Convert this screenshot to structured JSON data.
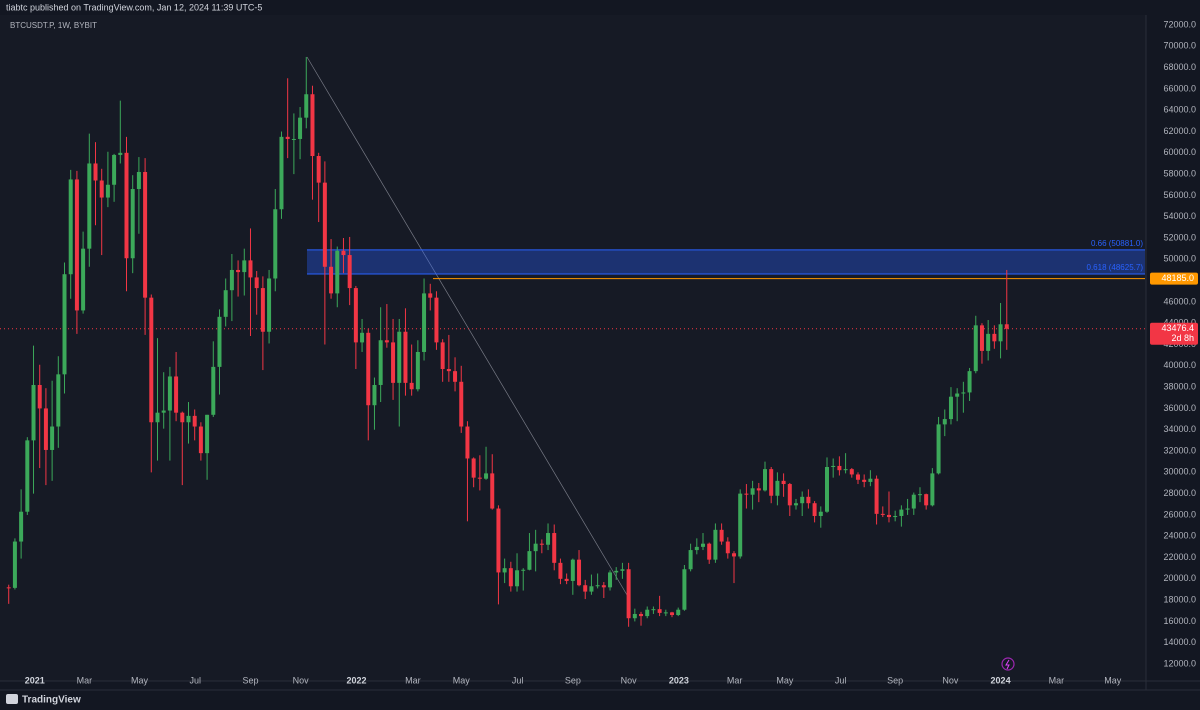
{
  "header": {
    "byline": "tiabtc published on TradingView.com, Jan 12, 2024 11:39 UTC-5",
    "symbol": "BTCUSDT.P, 1W, BYBIT",
    "brand": "TradingView"
  },
  "chart_data": {
    "type": "candlestick",
    "up_color": "#3ca95a",
    "down_color": "#f23645",
    "grid": false,
    "x": [
      0,
      1,
      2,
      3,
      4,
      5,
      6,
      7,
      8,
      9,
      10,
      11,
      12,
      13,
      14,
      15,
      16,
      17,
      18,
      19,
      20,
      21,
      22,
      23,
      24,
      25,
      26,
      27,
      28,
      29,
      30,
      31,
      32,
      33,
      34,
      35,
      36,
      37,
      38,
      39,
      40,
      41,
      42,
      43,
      44,
      45,
      46,
      47,
      48,
      49,
      50,
      51,
      52,
      53,
      54,
      55,
      56,
      57,
      58,
      59,
      60,
      61,
      62,
      63,
      64,
      65,
      66,
      67,
      68,
      69,
      70,
      71,
      72,
      73,
      74,
      75,
      76,
      77,
      78,
      79,
      80,
      81,
      82,
      83,
      84,
      85,
      86,
      87,
      88,
      89,
      90,
      91,
      92,
      93,
      94,
      95,
      96,
      97,
      98,
      99,
      100,
      101,
      102,
      103,
      104,
      105,
      106,
      107,
      108,
      109,
      110,
      111,
      112,
      113,
      114,
      115,
      116,
      117,
      118,
      119,
      120,
      121,
      122,
      123,
      124,
      125,
      126,
      127,
      128,
      129,
      130,
      131,
      132,
      133,
      134,
      135,
      136,
      137,
      138,
      139,
      140,
      141,
      142,
      143,
      144,
      145,
      146,
      147,
      148,
      149,
      150,
      151,
      152,
      153,
      154,
      155,
      156,
      157,
      158,
      159,
      160,
      161
    ],
    "open": [
      19200,
      19150,
      23500,
      26300,
      33000,
      38200,
      36000,
      32100,
      34300,
      39200,
      48600,
      57500,
      45200,
      51000,
      59000,
      57400,
      55800,
      57000,
      59800,
      60000,
      50100,
      56600,
      58200,
      46400,
      34700,
      35600,
      35800,
      39000,
      35600,
      34700,
      35300,
      34300,
      31800,
      35400,
      39900,
      44600,
      47100,
      49000,
      48800,
      49900,
      48300,
      47300,
      43200,
      48200,
      54700,
      61500,
      61300,
      61300,
      63300,
      65500,
      59700,
      57200,
      49300,
      46800,
      50800,
      50400,
      47300,
      42200,
      43100,
      36300,
      38200,
      42400,
      42200,
      38400,
      43200,
      38400,
      37800,
      41300,
      46800,
      46400,
      42200,
      39700,
      39500,
      38500,
      34300,
      31300,
      29500,
      29400,
      29900,
      26600,
      20600,
      21000,
      19300,
      20800,
      20850,
      22600,
      23300,
      23200,
      24300,
      21500,
      20000,
      19800,
      21800,
      19400,
      18800,
      19300,
      19400,
      19200,
      20600,
      20750,
      20900,
      16300,
      16700,
      16500,
      17100,
      17150,
      16800,
      16850,
      16600,
      17100,
      20900,
      22700,
      23000,
      23300,
      21800,
      24600,
      23500,
      22400,
      22100,
      28000,
      27900,
      28500,
      28300,
      30300,
      27800,
      29200,
      28900,
      26900,
      27100,
      27700,
      27100,
      25900,
      26300,
      30500,
      30600,
      30200,
      30300,
      29800,
      29300,
      29100,
      29400,
      26100,
      26000,
      25800,
      25900,
      26500,
      26600,
      27900,
      27950,
      26900,
      29900,
      34500,
      35000,
      37100,
      37400,
      37500,
      39500,
      43800,
      41400,
      43000,
      42300,
      43900
    ],
    "high": [
      19450,
      23800,
      28400,
      33300,
      41900,
      40100,
      37900,
      38600,
      40900,
      49700,
      58400,
      58300,
      52600,
      61800,
      61000,
      58500,
      60100,
      59900,
      64900,
      61500,
      57900,
      59600,
      59500,
      46700,
      42600,
      39400,
      39900,
      41300,
      35700,
      36600,
      35900,
      34700,
      35400,
      42300,
      45300,
      48200,
      50500,
      49900,
      51000,
      52900,
      48900,
      48400,
      49000,
      56600,
      62000,
      67000,
      63700,
      64300,
      69000,
      66300,
      60000,
      59200,
      51900,
      51200,
      52000,
      52100,
      47500,
      44400,
      43500,
      38900,
      45500,
      45800,
      44400,
      44400,
      45400,
      42000,
      42400,
      48200,
      47700,
      47000,
      42500,
      42900,
      40800,
      40000,
      34800,
      31400,
      31600,
      32400,
      31700,
      26900,
      21900,
      21600,
      22400,
      21000,
      24300,
      24600,
      23700,
      25200,
      25100,
      21900,
      20500,
      21900,
      22700,
      19900,
      20400,
      20500,
      19700,
      20800,
      21100,
      21500,
      21500,
      17200,
      16900,
      17400,
      17400,
      18400,
      17100,
      16900,
      17300,
      21300,
      23300,
      23800,
      24300,
      23400,
      25200,
      25200,
      23900,
      22600,
      28400,
      28900,
      29200,
      29000,
      31000,
      30500,
      30000,
      29900,
      29000,
      27500,
      28200,
      28400,
      27300,
      26800,
      31400,
      31300,
      31500,
      31800,
      30400,
      30000,
      29800,
      30200,
      29700,
      26800,
      28200,
      26400,
      26900,
      27500,
      28100,
      28600,
      28000,
      30400,
      35200,
      35900,
      38000,
      37900,
      38500,
      39800,
      44700,
      44000,
      44300,
      43800,
      45900,
      49000
    ],
    "low": [
      17650,
      19000,
      21900,
      26000,
      28000,
      30400,
      28800,
      29200,
      32300,
      37400,
      46300,
      43000,
      44900,
      49300,
      53200,
      50400,
      54900,
      55400,
      59000,
      47000,
      48700,
      52400,
      42900,
      30000,
      31100,
      34100,
      31100,
      34800,
      28800,
      32700,
      33000,
      31100,
      29300,
      35200,
      37300,
      43700,
      44200,
      46500,
      46600,
      42800,
      44800,
      39600,
      42100,
      47000,
      53800,
      59500,
      58000,
      59400,
      62300,
      55600,
      53500,
      42000,
      46300,
      45500,
      48700,
      45700,
      39700,
      41300,
      33000,
      34000,
      36600,
      41700,
      36800,
      34300,
      37200,
      37200,
      37600,
      40500,
      45200,
      41500,
      38500,
      38500,
      37600,
      33700,
      25400,
      28600,
      28300,
      29300,
      26500,
      17600,
      19600,
      18800,
      18800,
      18900,
      20800,
      20700,
      22400,
      22700,
      20800,
      19500,
      19500,
      18500,
      19300,
      18100,
      18500,
      19100,
      18200,
      18900,
      19900,
      20000,
      15500,
      16000,
      15600,
      16300,
      16700,
      16500,
      16500,
      16400,
      16500,
      17000,
      20700,
      22300,
      22700,
      21400,
      21500,
      23200,
      21900,
      19600,
      21900,
      26600,
      26500,
      27200,
      28200,
      27100,
      26900,
      27700,
      25900,
      26500,
      25900,
      26600,
      25300,
      24800,
      26200,
      29500,
      29700,
      29900,
      29500,
      28900,
      28600,
      28700,
      25100,
      25800,
      25300,
      25400,
      24900,
      26000,
      26000,
      27200,
      26500,
      26800,
      29800,
      33400,
      34500,
      34800,
      35600,
      36700,
      39300,
      40200,
      40500,
      41600,
      40700,
      41500
    ],
    "close": [
      19150,
      23500,
      26300,
      33000,
      38200,
      36000,
      32100,
      34300,
      39200,
      48600,
      57500,
      45200,
      51000,
      59000,
      57400,
      55800,
      57000,
      59800,
      60000,
      50100,
      56600,
      58200,
      46400,
      34700,
      35600,
      35800,
      39000,
      35600,
      34700,
      35300,
      34300,
      31800,
      35400,
      39900,
      44600,
      47100,
      49000,
      48800,
      49900,
      48300,
      47300,
      43200,
      48200,
      54700,
      61500,
      61300,
      61300,
      63300,
      65500,
      59700,
      57200,
      49300,
      46800,
      50800,
      50400,
      47300,
      42200,
      43100,
      36300,
      38200,
      42400,
      42200,
      38400,
      43200,
      38400,
      37800,
      41300,
      46800,
      46400,
      42200,
      39700,
      39500,
      38500,
      34300,
      31300,
      29500,
      29400,
      29900,
      26600,
      20600,
      21000,
      19300,
      20800,
      20850,
      22600,
      23300,
      23200,
      24300,
      21500,
      20000,
      19800,
      21800,
      19400,
      18800,
      19300,
      19400,
      19200,
      20600,
      20750,
      20900,
      16300,
      16700,
      16500,
      17100,
      17150,
      16800,
      16850,
      16600,
      17100,
      20900,
      22700,
      23000,
      23300,
      21800,
      24600,
      23500,
      22400,
      22100,
      28000,
      27900,
      28500,
      28300,
      30300,
      27800,
      29200,
      28900,
      26900,
      27100,
      27700,
      27100,
      25900,
      26300,
      30500,
      30600,
      30200,
      30300,
      29800,
      29300,
      29100,
      29400,
      26100,
      26000,
      25800,
      25900,
      26500,
      26600,
      27900,
      27950,
      26900,
      29900,
      34500,
      35000,
      37100,
      37400,
      37500,
      39500,
      43800,
      41400,
      43000,
      42300,
      43900,
      43476.4
    ],
    "xlim": [
      -0.6,
      183.3
    ],
    "xticks": [
      {
        "value": 4.2,
        "label": "2021"
      },
      {
        "value": 12.2,
        "label": "Mar"
      },
      {
        "value": 21.1,
        "label": "May"
      },
      {
        "value": 30.1,
        "label": "Jul"
      },
      {
        "value": 39,
        "label": "Sep"
      },
      {
        "value": 47.1,
        "label": "Nov"
      },
      {
        "value": 56.1,
        "label": "2022"
      },
      {
        "value": 65.2,
        "label": "Mar"
      },
      {
        "value": 73,
        "label": "May"
      },
      {
        "value": 82.1,
        "label": "Jul"
      },
      {
        "value": 91,
        "label": "Sep"
      },
      {
        "value": 100,
        "label": "Nov"
      },
      {
        "value": 108.1,
        "label": "2023"
      },
      {
        "value": 117.1,
        "label": "Mar"
      },
      {
        "value": 125.2,
        "label": "May"
      },
      {
        "value": 134.2,
        "label": "Jul"
      },
      {
        "value": 143,
        "label": "Sep"
      },
      {
        "value": 151.9,
        "label": "Nov"
      },
      {
        "value": 160,
        "label": "2024"
      },
      {
        "value": 169,
        "label": "Mar"
      },
      {
        "value": 178.1,
        "label": "May"
      }
    ],
    "ylim": [
      10500,
      72940
    ],
    "yticks": [
      {
        "value": 12000,
        "label": "12000.0"
      },
      {
        "value": 14000,
        "label": "14000.0"
      },
      {
        "value": 16000,
        "label": "16000.0"
      },
      {
        "value": 18000,
        "label": "18000.0"
      },
      {
        "value": 20000,
        "label": "20000.0"
      },
      {
        "value": 22000,
        "label": "22000.0"
      },
      {
        "value": 24000,
        "label": "24000.0"
      },
      {
        "value": 26000,
        "label": "26000.0"
      },
      {
        "value": 28000,
        "label": "28000.0"
      },
      {
        "value": 30000,
        "label": "30000.0"
      },
      {
        "value": 32000,
        "label": "32000.0"
      },
      {
        "value": 34000,
        "label": "34000.0"
      },
      {
        "value": 36000,
        "label": "36000.0"
      },
      {
        "value": 38000,
        "label": "38000.0"
      },
      {
        "value": 40000,
        "label": "40000.0"
      },
      {
        "value": 42000,
        "label": "42000.0"
      },
      {
        "value": 44000,
        "label": "44000.0"
      },
      {
        "value": 46000,
        "label": "46000.0"
      },
      {
        "value": 48000,
        "label": "48000.0"
      },
      {
        "value": 50000,
        "label": "50000.0"
      },
      {
        "value": 52000,
        "label": "52000.0"
      },
      {
        "value": 54000,
        "label": "54000.0"
      },
      {
        "value": 56000,
        "label": "56000.0"
      },
      {
        "value": 58000,
        "label": "58000.0"
      },
      {
        "value": 60000,
        "label": "60000.0"
      },
      {
        "value": 62000,
        "label": "62000.0"
      },
      {
        "value": 64000,
        "label": "64000.0"
      },
      {
        "value": 66000,
        "label": "66000.0"
      },
      {
        "value": 68000,
        "label": "68000.0"
      },
      {
        "value": 70000,
        "label": "70000.0"
      },
      {
        "value": 72000,
        "label": "72000.0"
      }
    ],
    "fib_levels": [
      {
        "value": 50881.0,
        "label": "0.66 (50881.0)"
      },
      {
        "value": 48625.7,
        "label": "0.618 (48625.7)"
      }
    ],
    "fib_color": "#2962ff",
    "price_lines": [
      {
        "value": 48185.0,
        "label": "48185.0",
        "color": "#ff9800"
      },
      {
        "value": 43476.4,
        "label": "43476.4",
        "countdown": "2d 8h",
        "color": "#f23645"
      }
    ]
  }
}
